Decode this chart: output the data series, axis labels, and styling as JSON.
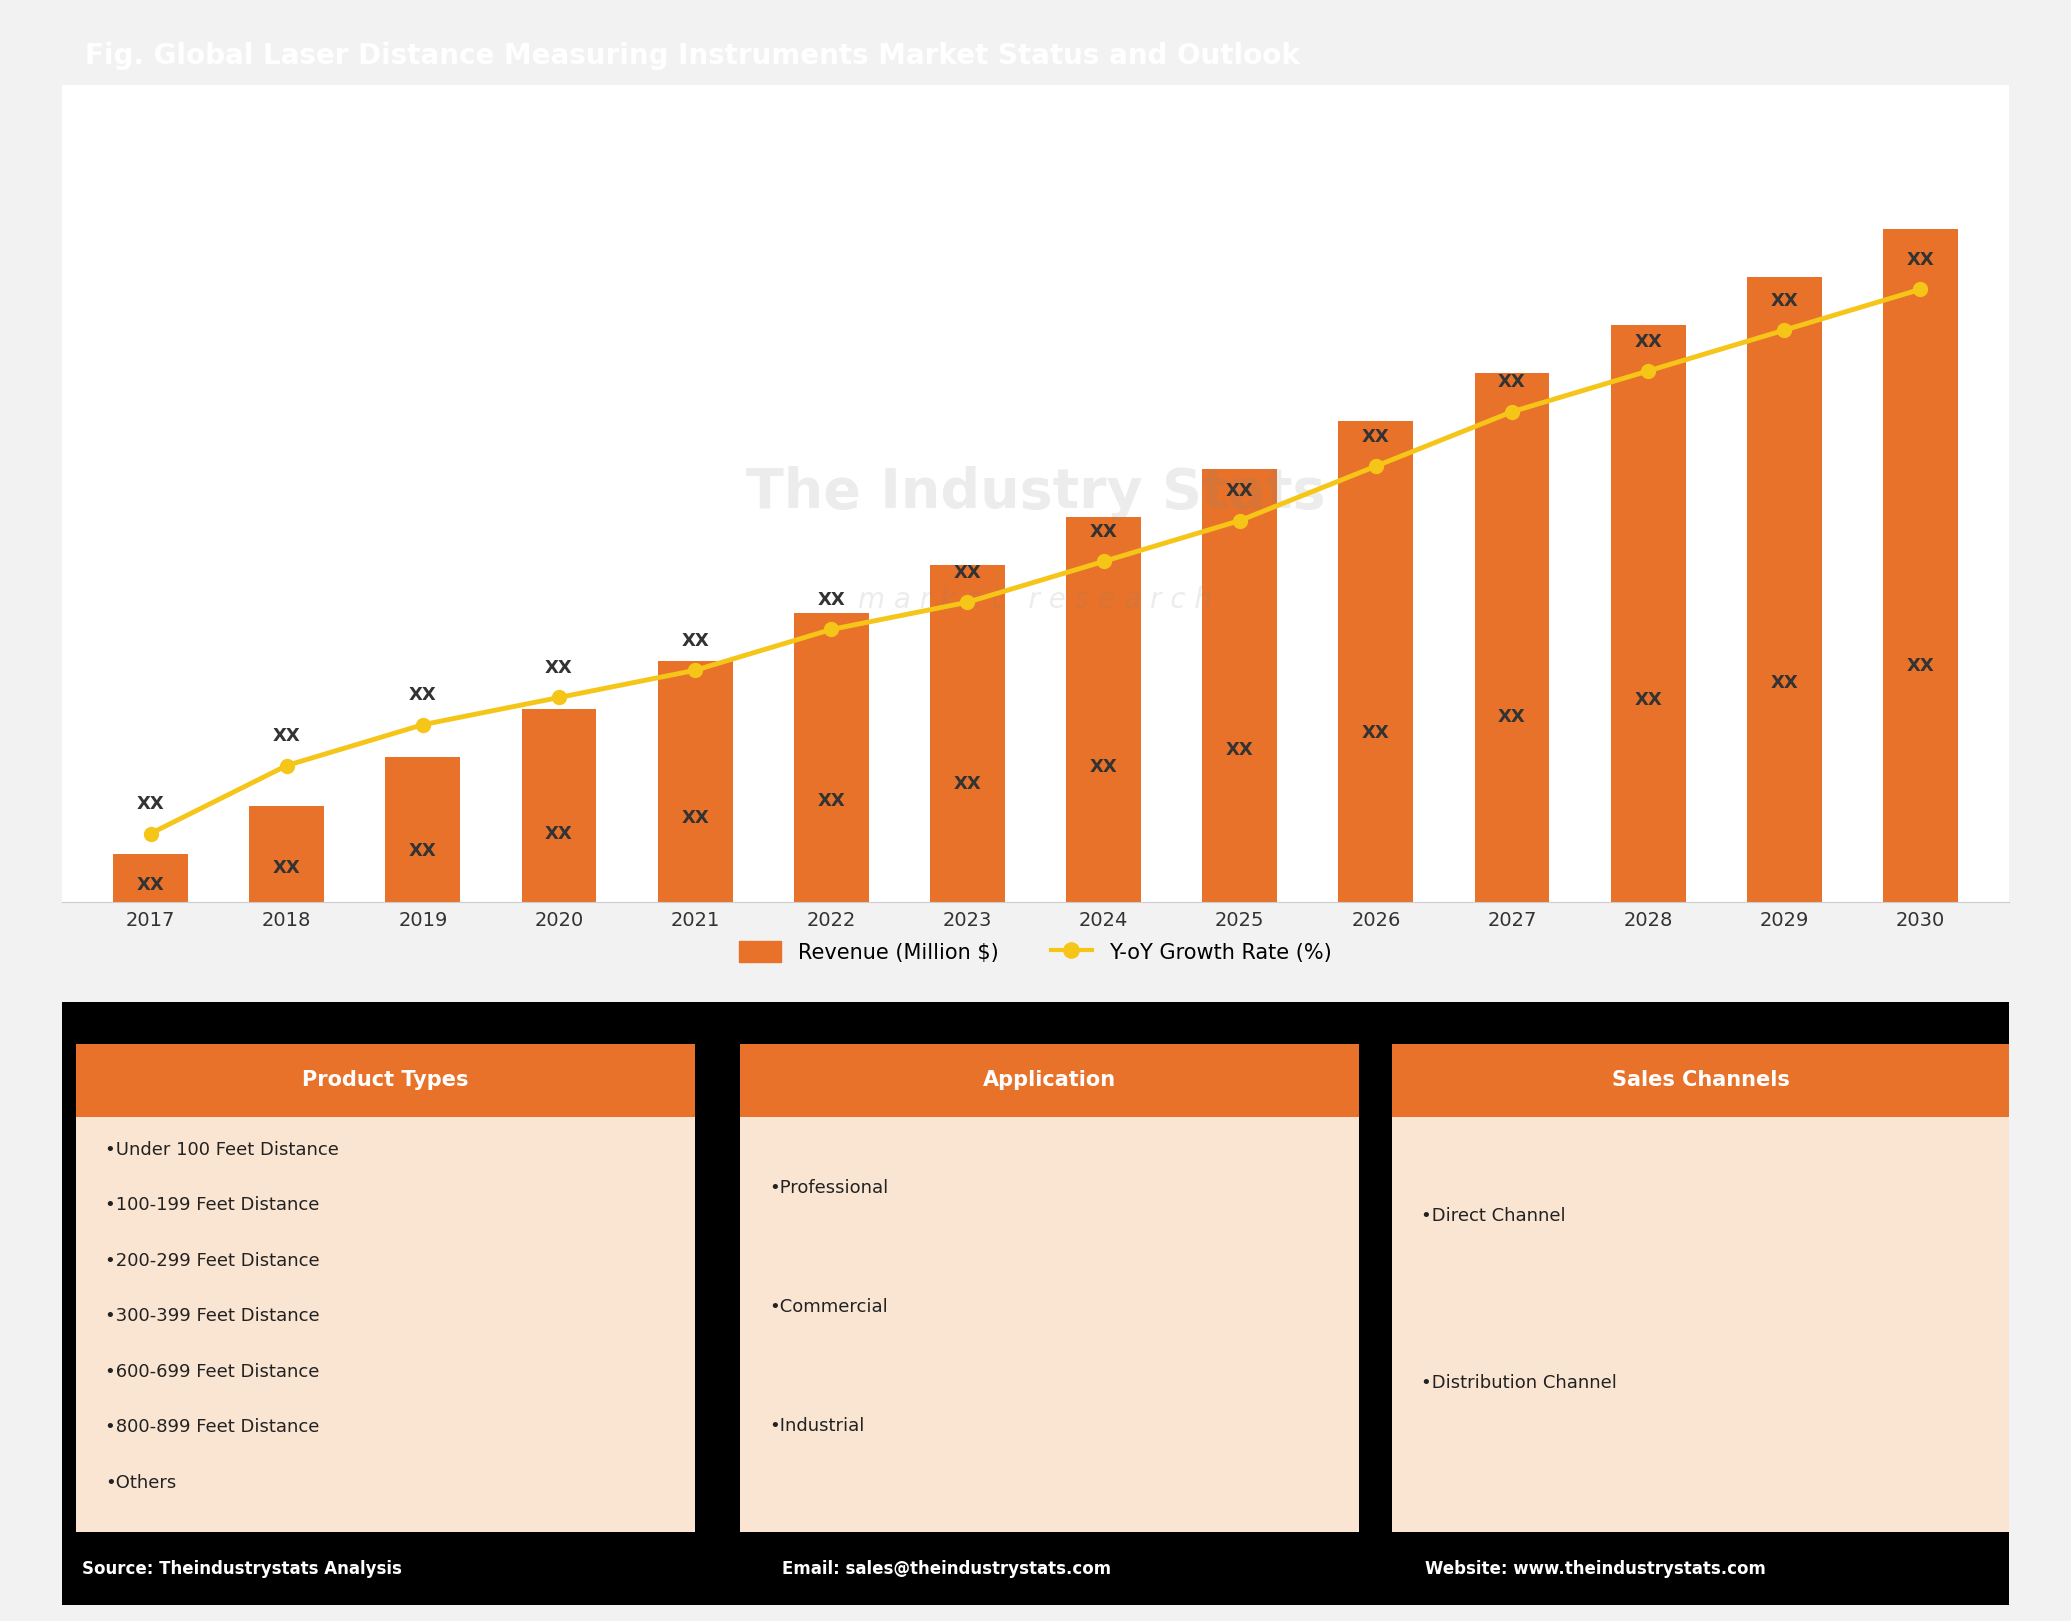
{
  "title": "Fig. Global Laser Distance Measuring Instruments Market Status and Outlook",
  "title_bg_color": "#4472C4",
  "title_text_color": "#FFFFFF",
  "years": [
    2017,
    2018,
    2019,
    2020,
    2021,
    2022,
    2023,
    2024,
    2025,
    2026,
    2027,
    2028,
    2029,
    2030
  ],
  "bar_values": [
    1,
    2,
    3,
    4,
    5,
    6,
    7,
    8,
    9,
    10,
    11,
    12,
    13,
    14
  ],
  "bar_labels": [
    "XX",
    "XX",
    "XX",
    "XX",
    "XX",
    "XX",
    "XX",
    "XX",
    "XX",
    "XX",
    "XX",
    "XX",
    "XX",
    "XX"
  ],
  "line_values": [
    0.5,
    1.0,
    1.3,
    1.5,
    1.7,
    2.0,
    2.2,
    2.5,
    2.8,
    3.2,
    3.6,
    3.9,
    4.2,
    4.5
  ],
  "line_labels": [
    "XX",
    "XX",
    "XX",
    "XX",
    "XX",
    "XX",
    "XX",
    "XX",
    "XX",
    "XX",
    "XX",
    "XX",
    "XX",
    "XX"
  ],
  "bar_color": "#E8722A",
  "line_color": "#F5C518",
  "line_marker": "o",
  "bar_legend": "Revenue (Million $)",
  "line_legend": "Y-oY Growth Rate (%)",
  "chart_bg": "#FFFFFF",
  "grid_color": "#CCCCCC",
  "watermark": "The Industry Stats",
  "watermark_sub": "m a r k e t   r e s e a r c h",
  "footer_bg": "#000000",
  "footer_text_color": "#FFFFFF",
  "footer_items": [
    "Source: Theindustrystats Analysis",
    "Email: sales@theindustrystats.com",
    "Website: www.theindustrystats.com"
  ],
  "table_headers": [
    "Product Types",
    "Application",
    "Sales Channels"
  ],
  "table_header_bg": "#E8722A",
  "table_header_text": "#FFFFFF",
  "table_body_bg": "#FAE5D3",
  "table_items": [
    [
      "Under 100 Feet Distance",
      "100-199 Feet Distance",
      "200-299 Feet Distance",
      "300-399 Feet Distance",
      "600-699 Feet Distance",
      "800-899 Feet Distance",
      "Others"
    ],
    [
      "Professional",
      "Commercial",
      "Industrial"
    ],
    [
      "Direct Channel",
      "Distribution Channel"
    ]
  ],
  "outer_bg": "#F2F2F2"
}
